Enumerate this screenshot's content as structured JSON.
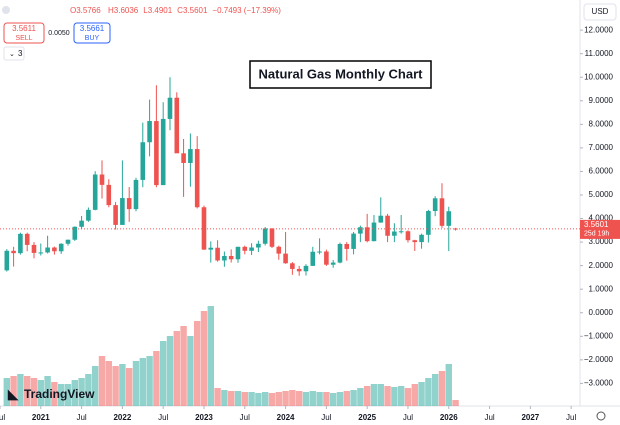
{
  "header": {
    "symbol_marker": "O3.5766",
    "items": [
      "H3.6036",
      "L3.4901",
      "C3.5601",
      "−0.7493 (−17.39%)"
    ],
    "sell_price": "3.5611",
    "sell_label": "SELL",
    "spread": "0.0050",
    "buy_price": "3.5661",
    "buy_label": "BUY",
    "indicators": "3",
    "currency": "USD",
    "brand": "TradingView"
  },
  "chart_data": {
    "type": "candlestick",
    "title": "Natural Gas Monthly Chart",
    "x": [
      -5,
      -4,
      -3,
      -2,
      -1,
      0,
      1,
      2,
      3,
      4,
      5,
      6,
      7,
      8,
      9,
      10,
      11,
      12,
      13,
      14,
      15,
      16,
      17,
      18,
      19,
      20,
      21,
      22,
      23,
      24,
      25,
      26,
      27,
      28,
      29,
      30,
      31,
      32,
      33,
      34,
      35,
      36,
      37,
      38,
      39,
      40,
      41,
      42,
      43,
      44,
      45,
      46,
      47,
      48,
      49,
      50,
      51,
      52,
      53,
      54,
      55,
      56,
      57,
      58,
      59,
      60,
      61
    ],
    "open": [
      1.8,
      2.63,
      2.53,
      3.35,
      2.88,
      2.54,
      2.56,
      2.77,
      2.61,
      2.93,
      3.1,
      3.65,
      3.91,
      4.37,
      5.87,
      5.43,
      4.57,
      3.73,
      4.87,
      4.4,
      5.64,
      7.24,
      8.14,
      5.42,
      8.23,
      9.13,
      6.77,
      6.36,
      6.95,
      4.48,
      2.68,
      2.76,
      2.22,
      2.41,
      2.27,
      2.8,
      2.63,
      2.77,
      2.93,
      3.58,
      2.8,
      2.51,
      2.1,
      1.86,
      1.76,
      1.99,
      2.59,
      2.6,
      2.04,
      2.13,
      2.92,
      2.71,
      3.36,
      3.63,
      3.04,
      3.83,
      4.12,
      3.27,
      3.45,
      3.46,
      3.08,
      3.0,
      3.31,
      4.32,
      4.86,
      3.69,
      3.5766
    ],
    "high": [
      2.7,
      2.8,
      3.4,
      3.4,
      3.0,
      2.94,
      3.27,
      2.81,
      2.95,
      3.11,
      3.67,
      4.11,
      4.47,
      6.01,
      6.47,
      5.67,
      4.7,
      6.47,
      5.34,
      5.73,
      8.07,
      9.05,
      9.66,
      8.94,
      10.0,
      9.36,
      7.38,
      7.61,
      7.5,
      4.55,
      3.03,
      3.08,
      2.6,
      2.69,
      2.8,
      2.85,
      2.95,
      3.06,
      3.64,
      3.59,
      2.85,
      3.43,
      2.15,
      1.99,
      2.06,
      2.8,
      3.16,
      2.68,
      2.24,
      2.98,
      3.0,
      3.43,
      3.7,
      4.2,
      4.15,
      4.9,
      4.2,
      3.8,
      4.15,
      3.5,
      3.1,
      3.36,
      4.37,
      4.95,
      5.5,
      4.5,
      3.6036
    ],
    "low": [
      1.75,
      1.96,
      2.47,
      2.61,
      2.31,
      2.43,
      2.52,
      2.47,
      2.5,
      2.85,
      3.05,
      3.57,
      3.86,
      4.35,
      4.85,
      4.48,
      3.53,
      3.73,
      3.86,
      4.31,
      5.33,
      6.64,
      5.33,
      5.42,
      7.75,
      6.79,
      4.92,
      5.35,
      4.43,
      2.67,
      2.13,
      2.17,
      1.95,
      2.13,
      2.12,
      2.48,
      2.45,
      2.58,
      2.86,
      2.75,
      2.25,
      2.08,
      1.61,
      1.57,
      1.58,
      1.99,
      2.48,
      1.99,
      1.91,
      2.1,
      2.21,
      2.48,
      3.0,
      2.99,
      3.03,
      3.82,
      3.0,
      3.0,
      3.36,
      2.98,
      2.62,
      2.72,
      2.98,
      4.1,
      3.6,
      2.62,
      3.4901
    ],
    "close": [
      2.63,
      2.53,
      3.35,
      2.88,
      2.54,
      2.56,
      2.77,
      2.61,
      2.93,
      3.1,
      3.65,
      3.91,
      4.37,
      5.87,
      5.43,
      4.57,
      3.73,
      4.87,
      4.4,
      5.64,
      7.24,
      8.14,
      5.42,
      8.23,
      9.13,
      6.77,
      6.36,
      6.95,
      4.48,
      2.68,
      2.76,
      2.22,
      2.41,
      2.27,
      2.8,
      2.63,
      2.77,
      2.93,
      3.58,
      2.8,
      2.51,
      2.1,
      1.86,
      1.76,
      1.99,
      2.59,
      2.6,
      2.04,
      2.13,
      2.92,
      2.71,
      3.36,
      3.63,
      3.04,
      3.83,
      4.12,
      3.27,
      3.45,
      3.46,
      3.08,
      3.0,
      3.31,
      4.32,
      4.86,
      3.69,
      4.31,
      3.5601
    ],
    "volume": [
      28,
      30,
      32,
      30,
      28,
      26,
      30,
      24,
      22,
      22,
      26,
      28,
      32,
      40,
      50,
      45,
      40,
      42,
      38,
      45,
      48,
      50,
      55,
      65,
      70,
      75,
      80,
      70,
      85,
      95,
      100,
      18,
      16,
      15,
      15,
      14,
      14,
      13,
      14,
      13,
      14,
      15,
      16,
      15,
      14,
      15,
      14,
      14,
      13,
      14,
      15,
      16,
      18,
      20,
      22,
      22,
      20,
      19,
      20,
      18,
      22,
      24,
      28,
      32,
      35,
      42,
      6
    ],
    "up_color": "#26a69a",
    "down_color": "#ef5350",
    "xlim": [
      -6,
      79.3
    ],
    "xticks": [
      {
        "value": -6,
        "label": "Jul"
      },
      {
        "value": 0,
        "label": "2021"
      },
      {
        "value": 6,
        "label": "Jul"
      },
      {
        "value": 12,
        "label": "2022"
      },
      {
        "value": 18,
        "label": "Jul"
      },
      {
        "value": 24,
        "label": "2023"
      },
      {
        "value": 30,
        "label": "Jul"
      },
      {
        "value": 36,
        "label": "2024"
      },
      {
        "value": 42,
        "label": "Jul"
      },
      {
        "value": 48,
        "label": "2025"
      },
      {
        "value": 54,
        "label": "Jul"
      },
      {
        "value": 60,
        "label": "2026"
      },
      {
        "value": 66,
        "label": "Jul"
      },
      {
        "value": 72,
        "label": "2027"
      },
      {
        "value": 78,
        "label": "Jul"
      }
    ],
    "ylim": [
      -3.96,
      13.28
    ],
    "yticks": [
      {
        "value": 12,
        "label": "12.0000"
      },
      {
        "value": 11,
        "label": "11.0000"
      },
      {
        "value": 10,
        "label": "10.0000"
      },
      {
        "value": 9,
        "label": "9.0000"
      },
      {
        "value": 8,
        "label": "8.0000"
      },
      {
        "value": 7,
        "label": "7.0000"
      },
      {
        "value": 6,
        "label": "6.0000"
      },
      {
        "value": 5,
        "label": "5.0000"
      },
      {
        "value": 4,
        "label": "4.0000"
      },
      {
        "value": 3,
        "label": "3.0000"
      },
      {
        "value": 2,
        "label": "2.0000"
      },
      {
        "value": 1,
        "label": "1.0000"
      },
      {
        "value": 0,
        "label": "0.0000"
      },
      {
        "value": -1,
        "label": "−1.0000"
      },
      {
        "value": -2,
        "label": "−2.0000"
      },
      {
        "value": -3,
        "label": "−3.0000"
      }
    ],
    "last_price_label": "3.5601",
    "countdown": "25d 19h"
  }
}
